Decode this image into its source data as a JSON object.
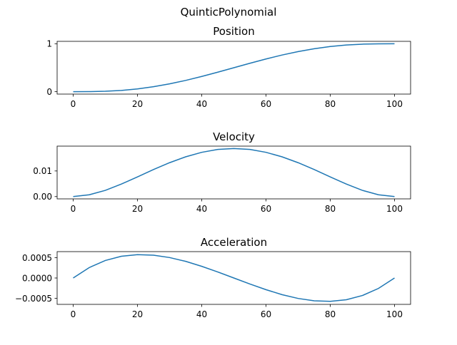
{
  "figure": {
    "title": "QuinticPolynomial",
    "line_color": "#1f77b4"
  },
  "chart_data": [
    {
      "type": "line",
      "title": "Position",
      "xlabel": "",
      "ylabel": "",
      "xlim": [
        -5,
        105
      ],
      "ylim": [
        -0.05,
        1.05
      ],
      "xticks": [
        0,
        20,
        40,
        60,
        80,
        100
      ],
      "xtick_labels": [
        "0",
        "20",
        "40",
        "60",
        "80",
        "100"
      ],
      "yticks": [
        0,
        1
      ],
      "ytick_labels": [
        "0",
        "1"
      ],
      "grid": false,
      "x": [
        0,
        5,
        10,
        15,
        20,
        25,
        30,
        35,
        40,
        45,
        50,
        55,
        60,
        65,
        70,
        75,
        80,
        85,
        90,
        95,
        100
      ],
      "series": [
        {
          "values": [
            0,
            0.0012,
            0.0086,
            0.0266,
            0.0579,
            0.1035,
            0.1631,
            0.2352,
            0.3174,
            0.4069,
            0.5,
            0.5931,
            0.6826,
            0.7648,
            0.8369,
            0.8965,
            0.9421,
            0.9734,
            0.9914,
            0.9988,
            1
          ]
        }
      ]
    },
    {
      "type": "line",
      "title": "Velocity",
      "xlabel": "",
      "ylabel": "",
      "xlim": [
        -5,
        105
      ],
      "ylim": [
        -0.0009,
        0.0197
      ],
      "xticks": [
        0,
        20,
        40,
        60,
        80,
        100
      ],
      "xtick_labels": [
        "0",
        "20",
        "40",
        "60",
        "80",
        "100"
      ],
      "yticks": [
        0,
        0.01
      ],
      "ytick_labels": [
        "0.00",
        "0.01"
      ],
      "grid": false,
      "x": [
        0,
        5,
        10,
        15,
        20,
        25,
        30,
        35,
        40,
        45,
        50,
        55,
        60,
        65,
        70,
        75,
        80,
        85,
        90,
        95,
        100
      ],
      "series": [
        {
          "values": [
            0,
            0.0007,
            0.00243,
            0.00488,
            0.00768,
            0.01055,
            0.01323,
            0.01552,
            0.01728,
            0.0184,
            0.01875,
            0.0184,
            0.01728,
            0.01552,
            0.01323,
            0.01055,
            0.00768,
            0.00488,
            0.00243,
            0.0007,
            0
          ]
        }
      ]
    },
    {
      "type": "line",
      "title": "Acceleration",
      "xlabel": "",
      "ylabel": "",
      "xlim": [
        -5,
        105
      ],
      "ylim": [
        -0.00065,
        0.00065
      ],
      "xticks": [
        0,
        20,
        40,
        60,
        80,
        100
      ],
      "xtick_labels": [
        "0",
        "20",
        "40",
        "60",
        "80",
        "100"
      ],
      "yticks": [
        0.0005,
        0,
        -0.0005
      ],
      "ytick_labels": [
        "0.0005",
        "0.0000",
        "−0.0005"
      ],
      "grid": false,
      "x": [
        0,
        5,
        10,
        15,
        20,
        25,
        30,
        35,
        40,
        45,
        50,
        55,
        60,
        65,
        70,
        75,
        80,
        85,
        90,
        95,
        100
      ],
      "series": [
        {
          "values": [
            0,
            0.000257,
            0.000432,
            0.000536,
            0.000576,
            0.000563,
            0.000504,
            0.00041,
            0.000288,
            0.000149,
            0,
            -0.000149,
            -0.000288,
            -0.00041,
            -0.000504,
            -0.000563,
            -0.000576,
            -0.000536,
            -0.000432,
            -0.000257,
            0
          ]
        }
      ]
    }
  ]
}
